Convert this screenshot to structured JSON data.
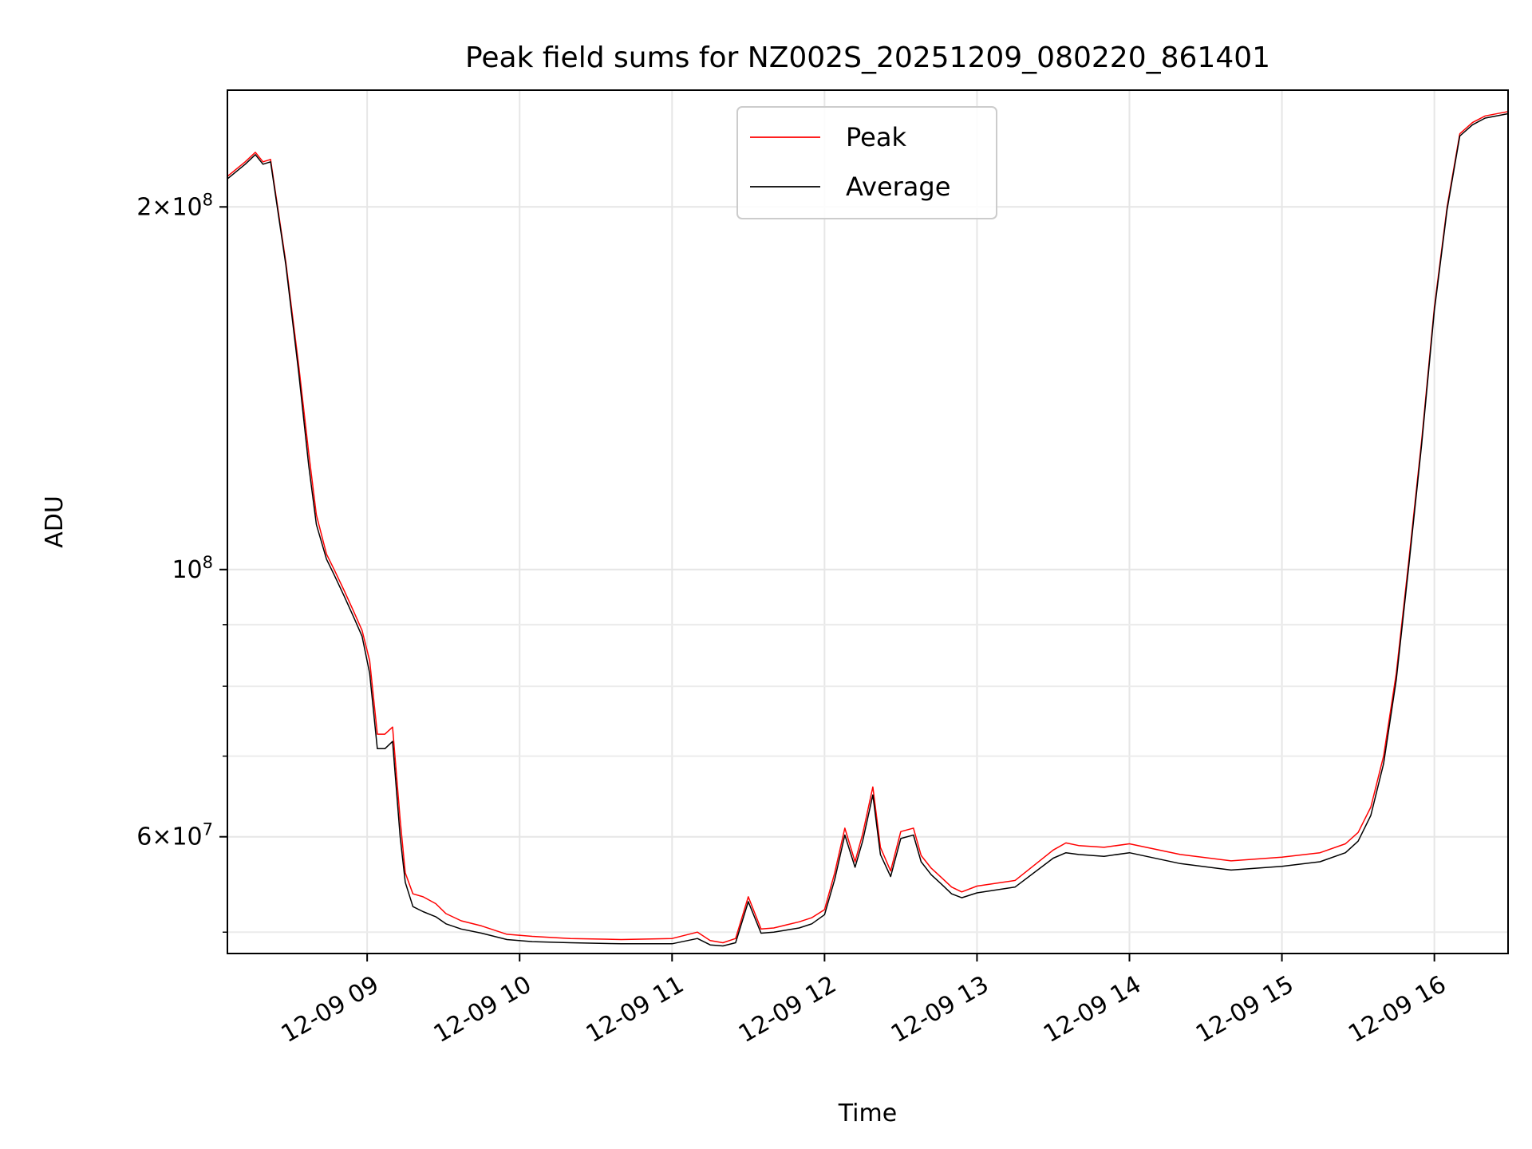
{
  "chart_data": {
    "type": "line",
    "title": "Peak field sums for NZ002S_20251209_080220_861401",
    "xlabel": "Time",
    "ylabel": "ADU",
    "y_scale": "log",
    "grid": true,
    "legend_position": "upper center",
    "xlim": [
      "2025-12-09 08:05",
      "2025-12-09 16:29"
    ],
    "ylim": [
      48000000,
      250000000
    ],
    "x_ticks": [
      {
        "value": "2025-12-09 09:00",
        "label": "12-09 09"
      },
      {
        "value": "2025-12-09 10:00",
        "label": "12-09 10"
      },
      {
        "value": "2025-12-09 11:00",
        "label": "12-09 11"
      },
      {
        "value": "2025-12-09 12:00",
        "label": "12-09 12"
      },
      {
        "value": "2025-12-09 13:00",
        "label": "12-09 13"
      },
      {
        "value": "2025-12-09 14:00",
        "label": "12-09 14"
      },
      {
        "value": "2025-12-09 15:00",
        "label": "12-09 15"
      },
      {
        "value": "2025-12-09 16:00",
        "label": "12-09 16"
      }
    ],
    "y_ticks_major": [
      {
        "value": 60000000,
        "mantissa": "6",
        "exponent": "7"
      },
      {
        "value": 100000000,
        "mantissa": "",
        "exponent": "8"
      },
      {
        "value": 200000000,
        "mantissa": "2",
        "exponent": "8"
      }
    ],
    "y_ticks_minor": [
      50000000,
      70000000,
      80000000,
      90000000
    ],
    "x": [
      "08:05",
      "08:12",
      "08:16",
      "08:19",
      "08:22",
      "08:28",
      "08:33",
      "08:37",
      "08:40",
      "08:44",
      "08:47",
      "08:51",
      "08:55",
      "08:58",
      "09:01",
      "09:04",
      "09:07",
      "09:10",
      "09:13",
      "09:15",
      "09:18",
      "09:22",
      "09:27",
      "09:31",
      "09:37",
      "09:45",
      "09:55",
      "10:05",
      "10:20",
      "10:40",
      "11:00",
      "11:10",
      "11:15",
      "11:20",
      "11:25",
      "11:30",
      "11:35",
      "11:40",
      "11:45",
      "11:50",
      "11:55",
      "12:00",
      "12:04",
      "12:08",
      "12:12",
      "12:15",
      "12:19",
      "12:22",
      "12:26",
      "12:30",
      "12:35",
      "12:38",
      "12:42",
      "12:46",
      "12:50",
      "12:54",
      "13:00",
      "13:15",
      "13:30",
      "13:35",
      "13:40",
      "13:50",
      "14:00",
      "14:20",
      "14:40",
      "15:00",
      "15:15",
      "15:25",
      "15:30",
      "15:35",
      "15:40",
      "15:45",
      "15:50",
      "15:55",
      "16:00",
      "16:05",
      "16:10",
      "16:15",
      "16:20",
      "16:29"
    ],
    "series": [
      {
        "name": "Peak",
        "color": "#ff0000",
        "values": [
          212,
          218,
          222,
          218,
          219,
          180,
          148,
          125,
          111,
          103,
          100,
          96,
          92,
          89,
          84,
          73,
          73,
          74,
          62,
          56,
          53.8,
          53.5,
          52.8,
          51.8,
          51.1,
          50.6,
          49.8,
          49.6,
          49.4,
          49.3,
          49.4,
          50.0,
          49.2,
          49.0,
          49.4,
          53.5,
          50.3,
          50.4,
          50.7,
          51.0,
          51.4,
          52.2,
          56.0,
          61.0,
          57.2,
          60.3,
          66.0,
          58.8,
          56.2,
          60.6,
          61.0,
          57.9,
          56.5,
          55.5,
          54.5,
          54.0,
          54.6,
          55.2,
          58.5,
          59.3,
          59.0,
          58.8,
          59.2,
          58.0,
          57.3,
          57.7,
          58.2,
          59.2,
          60.5,
          63.5,
          70,
          82,
          102,
          128,
          165,
          200,
          230,
          235,
          238,
          240
        ]
      },
      {
        "name": "Average",
        "color": "#000000",
        "values": [
          211,
          217,
          221,
          217,
          218,
          179,
          146,
          122,
          109,
          102,
          99,
          95,
          91,
          88,
          82,
          71,
          71,
          72,
          60,
          55,
          52.5,
          52.0,
          51.5,
          50.8,
          50.3,
          49.9,
          49.3,
          49.1,
          49.0,
          48.9,
          48.9,
          49.4,
          48.8,
          48.7,
          49.0,
          53.0,
          49.9,
          50.0,
          50.2,
          50.4,
          50.8,
          51.7,
          55.3,
          60.2,
          56.6,
          59.5,
          65.0,
          58.0,
          55.6,
          59.8,
          60.2,
          57.2,
          55.8,
          54.8,
          53.8,
          53.4,
          53.9,
          54.5,
          57.6,
          58.2,
          58.0,
          57.8,
          58.2,
          57.0,
          56.3,
          56.7,
          57.2,
          58.2,
          59.5,
          62.5,
          69,
          81,
          101,
          127,
          164,
          199,
          229,
          234,
          237,
          239
        ]
      }
    ]
  }
}
